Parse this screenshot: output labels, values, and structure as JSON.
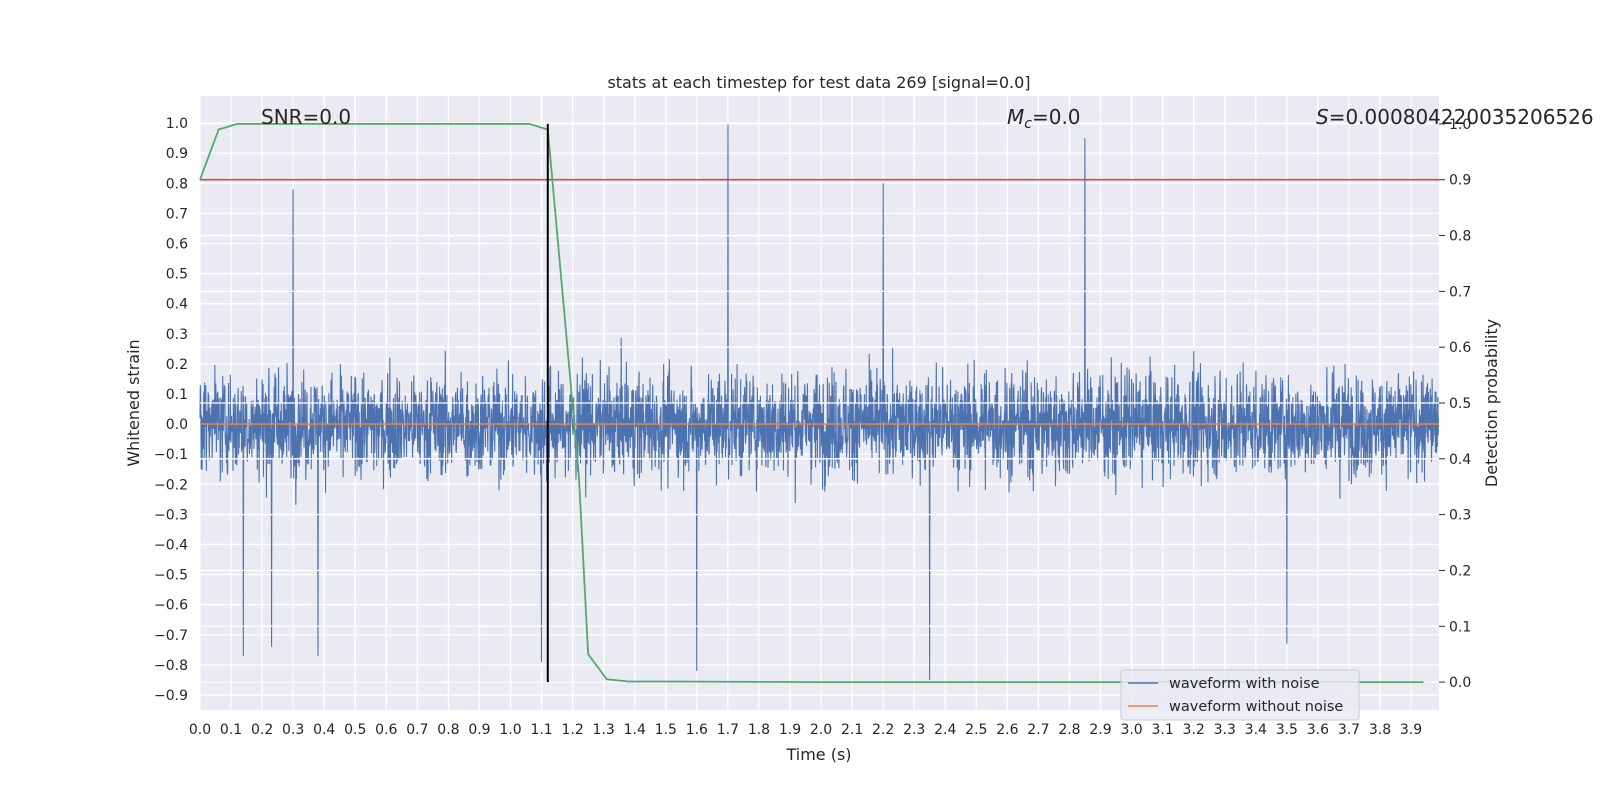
{
  "chart_data": {
    "type": "line",
    "title": "stats at each timestep for test data 269 [signal=0.0]",
    "xlabel": "Time (s)",
    "ylabel": "Whitened strain",
    "y2label": "Detection probability",
    "xlim": [
      0.0,
      3.99
    ],
    "ylim": [
      -0.95,
      1.09
    ],
    "y2lim": [
      -0.05,
      1.05
    ],
    "x_ticks": [
      0.0,
      0.1,
      0.2,
      0.3,
      0.4,
      0.5,
      0.6,
      0.7,
      0.8,
      0.9,
      1.0,
      1.1,
      1.2,
      1.3,
      1.4,
      1.5,
      1.6,
      1.7,
      1.8,
      1.9,
      2.0,
      2.1,
      2.2,
      2.3,
      2.4,
      2.5,
      2.6,
      2.7,
      2.8,
      2.9,
      3.0,
      3.1,
      3.2,
      3.3,
      3.4,
      3.5,
      3.6,
      3.7,
      3.8,
      3.9
    ],
    "x_tick_labels": [
      "0.0",
      "0.1",
      "0.2",
      "0.3",
      "0.4",
      "0.5",
      "0.6",
      "0.7",
      "0.8",
      "0.9",
      "1.0",
      "1.1",
      "1.2",
      "1.3",
      "1.4",
      "1.5",
      "1.6",
      "1.7",
      "1.8",
      "1.9",
      "2.0",
      "2.1",
      "2.2",
      "2.3",
      "2.4",
      "2.5",
      "2.6",
      "2.7",
      "2.8",
      "2.9",
      "3.0",
      "3.1",
      "3.2",
      "3.3",
      "3.4",
      "3.5",
      "3.6",
      "3.7",
      "3.8",
      "3.9"
    ],
    "y_ticks": [
      -0.9,
      -0.8,
      -0.7,
      -0.6,
      -0.5,
      -0.4,
      -0.3,
      -0.2,
      -0.1,
      0.0,
      0.1,
      0.2,
      0.3,
      0.4,
      0.5,
      0.6,
      0.7,
      0.8,
      0.9,
      1.0
    ],
    "y_tick_labels": [
      "−0.9",
      "−0.8",
      "−0.7",
      "−0.6",
      "−0.5",
      "−0.4",
      "−0.3",
      "−0.2",
      "−0.1",
      "0.0",
      "0.1",
      "0.2",
      "0.3",
      "0.4",
      "0.5",
      "0.6",
      "0.7",
      "0.8",
      "0.9",
      "1.0"
    ],
    "y2_ticks": [
      0.0,
      0.1,
      0.2,
      0.3,
      0.4,
      0.5,
      0.6,
      0.7,
      0.8,
      0.9,
      1.0
    ],
    "y2_tick_labels": [
      "0.0",
      "0.1",
      "0.2",
      "0.3",
      "0.4",
      "0.5",
      "0.6",
      "0.7",
      "0.8",
      "0.9",
      "1.0"
    ],
    "annotations": {
      "snr": "SNR=0.0",
      "mc_symbol": "M",
      "mc_sub": "c",
      "mc_value": "=0.0",
      "s_symbol": "S",
      "s_value": "=0.000804220035206526"
    },
    "series": [
      {
        "name": "waveform with noise",
        "color": "#4c72b0",
        "kind": "noise",
        "sample_rate": 1024,
        "envelope": [
          0.45,
          0.6
        ],
        "notable_peaks": [
          {
            "t": 0.3,
            "v": 0.78
          },
          {
            "t": 0.14,
            "v": -0.77
          },
          {
            "t": 0.23,
            "v": -0.74
          },
          {
            "t": 0.38,
            "v": -0.77
          },
          {
            "t": 1.1,
            "v": -0.79
          },
          {
            "t": 1.6,
            "v": -0.82
          },
          {
            "t": 1.7,
            "v": 1.0
          },
          {
            "t": 2.2,
            "v": 0.8
          },
          {
            "t": 2.35,
            "v": -0.85
          },
          {
            "t": 2.85,
            "v": 0.95
          },
          {
            "t": 3.5,
            "v": -0.73
          }
        ]
      },
      {
        "name": "waveform without noise",
        "color": "#dd8452",
        "kind": "constant",
        "value": 0.0
      },
      {
        "name": "detection probability",
        "color": "#55a868",
        "axis": "right",
        "x": [
          0.0,
          0.06,
          0.12,
          0.5,
          1.06,
          1.12,
          1.18,
          1.22,
          1.25,
          1.31,
          1.38,
          1.5,
          2.0,
          2.5,
          3.0,
          3.5,
          3.94
        ],
        "y": [
          0.9,
          0.99,
          1.0,
          1.0,
          1.0,
          0.99,
          0.62,
          0.37,
          0.05,
          0.005,
          0.001,
          0.001,
          0.0,
          0.0,
          0.0,
          0.0,
          0.0
        ]
      }
    ],
    "threshold_line": {
      "value": 0.9,
      "axis": "right",
      "color": "#c44e52"
    },
    "marker_line": {
      "x": 1.12,
      "color": "#000000"
    },
    "legend": {
      "location": "lower-right",
      "entries": [
        {
          "label": "waveform with noise",
          "color": "#4c72b0"
        },
        {
          "label": "waveform without noise",
          "color": "#dd8452"
        }
      ]
    }
  }
}
